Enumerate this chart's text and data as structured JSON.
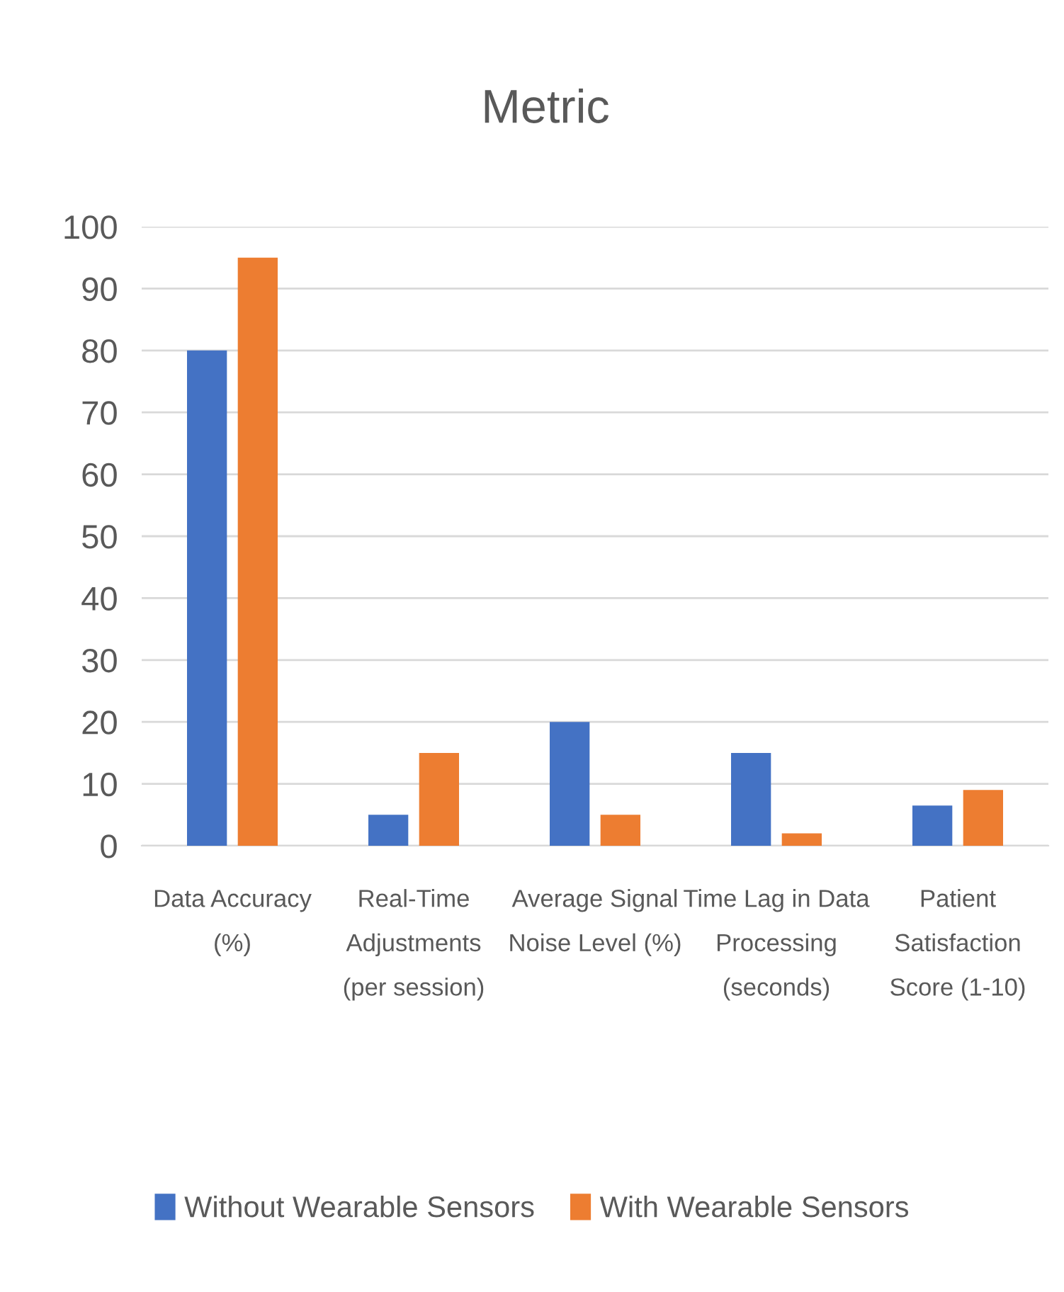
{
  "chart_data": {
    "type": "bar",
    "title": "Metric",
    "categories": [
      "Data Accuracy\n(%)",
      "Real-Time\nAdjustments\n(per session)",
      "Average Signal\nNoise Level (%)",
      "Time Lag in Data\nProcessing\n(seconds)",
      "Patient\nSatisfaction\nScore (1-10)"
    ],
    "series": [
      {
        "name": "Without Wearable Sensors",
        "color": "#4472c4",
        "values": [
          80,
          5,
          20,
          15,
          6.5
        ]
      },
      {
        "name": "With Wearable Sensors",
        "color": "#ed7d31",
        "values": [
          95,
          15,
          5,
          2,
          9
        ]
      }
    ],
    "ylim": [
      0,
      100
    ],
    "yticks": [
      0,
      10,
      20,
      30,
      40,
      50,
      60,
      70,
      80,
      90,
      100
    ],
    "grid": "y",
    "legend": "bottom"
  }
}
